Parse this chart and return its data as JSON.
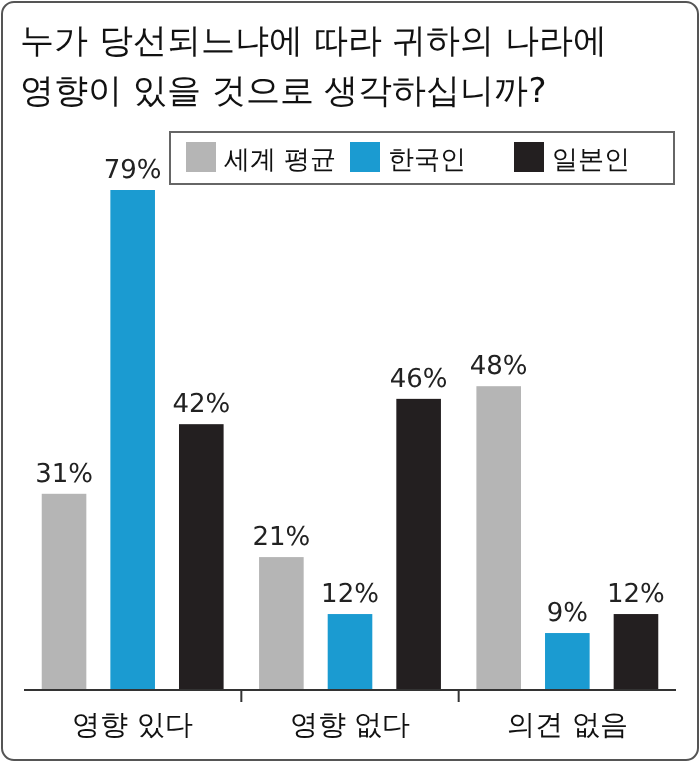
{
  "chart_data": {
    "type": "bar",
    "title": "누가 당선되느냐에 따라 귀하의 나라에\n영향이 있을 것으로 생각하십니까?",
    "categories": [
      "영향 있다",
      "영향 없다",
      "의견 없음"
    ],
    "series": [
      {
        "name": "세계 평균",
        "color": "#b5b5b5",
        "values": [
          31,
          21,
          48
        ],
        "value_labels": [
          "31%",
          "21%",
          "48%"
        ]
      },
      {
        "name": "한국인",
        "color": "#1b9bd1",
        "values": [
          79,
          12,
          9
        ],
        "value_labels": [
          "79%",
          "12%",
          "9%"
        ]
      },
      {
        "name": "일본인",
        "color": "#231f20",
        "values": [
          42,
          46,
          12
        ],
        "value_labels": [
          "42%",
          "46%",
          "12%"
        ]
      }
    ],
    "legend": "top"
  }
}
